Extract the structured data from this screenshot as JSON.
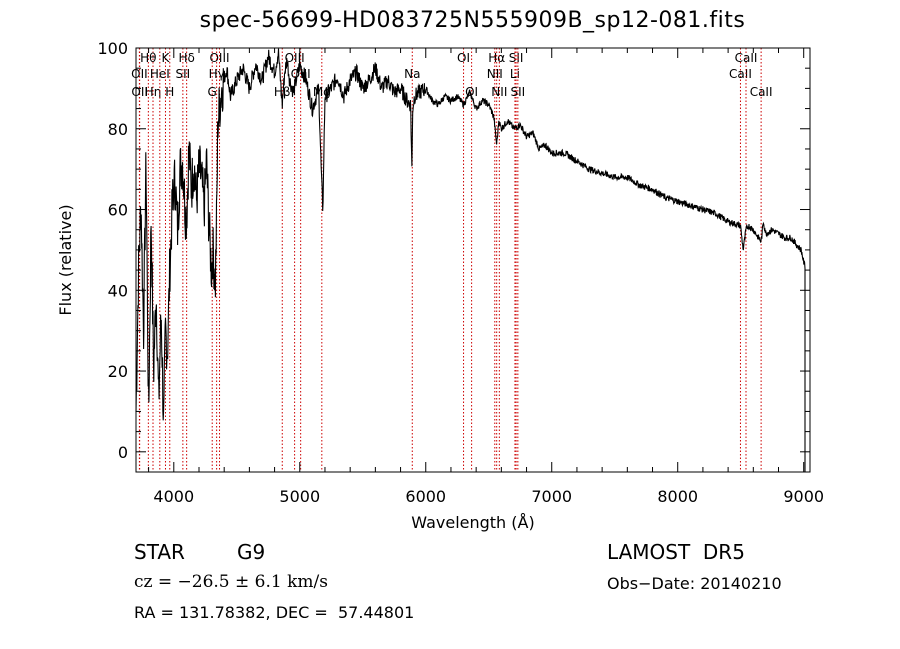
{
  "title": "spec-56699-HD083725N555909B_sp12-081.fits",
  "info": {
    "object_class": "STAR",
    "subclass": "G9",
    "survey": "LAMOST  DR5",
    "cz": "cz = −26.5 ± 6.1 km/s",
    "obs_date": "Obs−Date: 20140210",
    "radec": "RA = 131.78382, DEC =  57.44801"
  },
  "colors": {
    "spectrum": "#000000",
    "lines": "#cc0000",
    "axes": "#000000"
  },
  "chart_data": {
    "type": "line",
    "title": "spec-56699-HD083725N555909B_sp12-081.fits",
    "xlabel": "Wavelength (Å)",
    "ylabel": "Flux (relative)",
    "xlim": [
      3700,
      9050
    ],
    "ylim": [
      -5,
      100
    ],
    "xticks": [
      4000,
      5000,
      6000,
      7000,
      8000,
      9000
    ],
    "yticks": [
      0,
      20,
      40,
      60,
      80,
      100
    ],
    "grid": false,
    "legend": "none",
    "series": [
      {
        "x": [
          3700,
          3720,
          3740,
          3760,
          3780,
          3800,
          3820,
          3840,
          3860,
          3880,
          3900,
          3920,
          3933,
          3950,
          3968,
          3990,
          4010,
          4030,
          4050,
          4070,
          4090,
          4102,
          4120,
          4140,
          4160,
          4180,
          4200,
          4220,
          4240,
          4260,
          4280,
          4300,
          4310,
          4330,
          4340,
          4350,
          4380,
          4420,
          4450,
          4500,
          4550,
          4600,
          4650,
          4700,
          4750,
          4800,
          4830,
          4861,
          4880,
          4900,
          4920,
          4950,
          5000,
          5050,
          5100,
          5150,
          5172,
          5183,
          5200,
          5250,
          5300,
          5350,
          5400,
          5450,
          5500,
          5550,
          5600,
          5650,
          5700,
          5750,
          5800,
          5850,
          5880,
          5890,
          5896,
          5910,
          5950,
          6000,
          6050,
          6100,
          6150,
          6200,
          6250,
          6300,
          6350,
          6400,
          6450,
          6500,
          6540,
          6563,
          6580,
          6600,
          6650,
          6700,
          6750,
          6800,
          6850,
          6900,
          6950,
          7000,
          7100,
          7200,
          7300,
          7400,
          7500,
          7600,
          7700,
          7800,
          7900,
          8000,
          8100,
          8200,
          8300,
          8400,
          8498,
          8520,
          8542,
          8560,
          8600,
          8662,
          8680,
          8700,
          8750,
          8800,
          8850,
          8900,
          8950,
          8980,
          9000,
          9010
        ],
        "y": [
          10,
          45,
          62,
          30,
          72,
          8,
          58,
          20,
          40,
          12,
          35,
          5,
          30,
          25,
          45,
          62,
          68,
          55,
          70,
          72,
          60,
          58,
          75,
          65,
          72,
          62,
          70,
          68,
          60,
          72,
          55,
          45,
          50,
          42,
          58,
          82,
          90,
          95,
          88,
          92,
          95,
          90,
          96,
          92,
          98,
          94,
          99,
          86,
          94,
          97,
          92,
          89,
          96,
          92,
          85,
          90,
          68,
          60,
          88,
          90,
          93,
          88,
          92,
          94,
          90,
          92,
          95,
          90,
          92,
          89,
          90,
          87,
          86,
          70,
          85,
          88,
          89,
          90,
          87,
          86,
          88,
          87,
          88,
          86,
          89,
          85,
          87,
          86,
          83,
          76,
          82,
          80,
          82,
          80,
          81,
          78,
          79,
          75,
          76,
          74,
          74,
          72,
          70,
          69,
          68,
          68,
          66,
          65,
          63,
          62,
          61,
          60,
          59,
          57,
          56,
          50,
          55,
          56,
          55,
          52,
          57,
          54,
          55,
          54,
          53,
          53,
          51,
          50,
          47,
          46
        ]
      }
    ],
    "emission_lines": [
      {
        "label": "OII",
        "wavelength": 3727,
        "row": 2
      },
      {
        "label": "OII",
        "wavelength": 3729,
        "row": 3
      },
      {
        "label": "Hη",
        "wavelength": 3835,
        "row": 3
      },
      {
        "label": "Hθ",
        "wavelength": 3798,
        "row": 1
      },
      {
        "label": "HeI",
        "wavelength": 3889,
        "row": 2
      },
      {
        "label": "K",
        "wavelength": 3934,
        "row": 1
      },
      {
        "label": "H",
        "wavelength": 3968,
        "row": 3
      },
      {
        "label": "Hδ",
        "wavelength": 4102,
        "row": 1
      },
      {
        "label": "SII",
        "wavelength": 4072,
        "row": 2
      },
      {
        "label": "OIII",
        "wavelength": 4363,
        "row": 1
      },
      {
        "label": "Hγ",
        "wavelength": 4340,
        "row": 2
      },
      {
        "label": "G",
        "wavelength": 4305,
        "row": 3
      },
      {
        "label": "OIII",
        "wavelength": 4959,
        "row": 1
      },
      {
        "label": "OIII",
        "wavelength": 5007,
        "row": 2
      },
      {
        "label": "Hβ",
        "wavelength": 4861,
        "row": 3
      },
      {
        "label": "Mg",
        "wavelength": 5175,
        "row": 3
      },
      {
        "label": "Na",
        "wavelength": 5893,
        "row": 2
      },
      {
        "label": "OI",
        "wavelength": 6300,
        "row": 1
      },
      {
        "label": "OI",
        "wavelength": 6364,
        "row": 3
      },
      {
        "label": "Hα",
        "wavelength": 6563,
        "row": 1
      },
      {
        "label": "NII",
        "wavelength": 6548,
        "row": 2
      },
      {
        "label": "NII",
        "wavelength": 6584,
        "row": 3
      },
      {
        "label": "SII",
        "wavelength": 6717,
        "row": 1
      },
      {
        "label": "Li",
        "wavelength": 6708,
        "row": 2
      },
      {
        "label": "SII",
        "wavelength": 6731,
        "row": 3
      },
      {
        "label": "CaII",
        "wavelength": 8498,
        "row": 2
      },
      {
        "label": "CaII",
        "wavelength": 8542,
        "row": 1
      },
      {
        "label": "CaII",
        "wavelength": 8662,
        "row": 3
      }
    ]
  }
}
